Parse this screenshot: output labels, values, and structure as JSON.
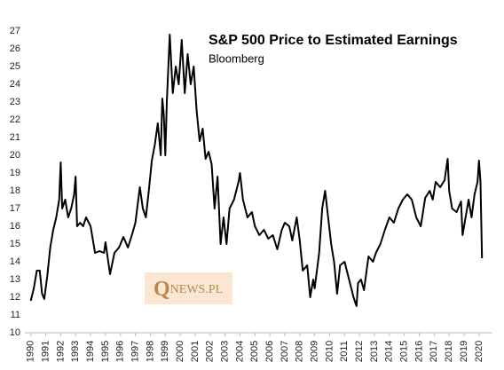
{
  "chart_data": {
    "type": "line",
    "title": "S&P 500 Price to Estimated Earnings",
    "subtitle": "Bloomberg",
    "watermark": {
      "initial": "Q",
      "rest": "NEWS.PL"
    },
    "color": "#000000",
    "x": [
      1990.0,
      1990.2,
      1990.4,
      1990.6,
      1990.75,
      1990.9,
      1991.1,
      1991.3,
      1991.5,
      1991.7,
      1991.9,
      1992.0,
      1992.1,
      1992.3,
      1992.5,
      1992.7,
      1992.9,
      1993.0,
      1993.1,
      1993.3,
      1993.5,
      1993.7,
      1994.0,
      1994.3,
      1994.6,
      1994.9,
      1995.0,
      1995.3,
      1995.6,
      1995.9,
      1996.2,
      1996.5,
      1996.8,
      1997.0,
      1997.3,
      1997.5,
      1997.7,
      1997.9,
      1998.1,
      1998.3,
      1998.5,
      1998.7,
      1998.8,
      1998.9,
      1999.0,
      1999.1,
      1999.3,
      1999.5,
      1999.7,
      1999.9,
      2000.1,
      2000.3,
      2000.5,
      2000.7,
      2000.9,
      2001.1,
      2001.3,
      2001.5,
      2001.7,
      2001.9,
      2002.1,
      2002.3,
      2002.5,
      2002.7,
      2002.9,
      2003.1,
      2003.3,
      2003.6,
      2003.9,
      2004.0,
      2004.2,
      2004.5,
      2004.8,
      2005.0,
      2005.3,
      2005.6,
      2005.9,
      2006.2,
      2006.5,
      2006.8,
      2007.0,
      2007.3,
      2007.5,
      2007.8,
      2008.0,
      2008.2,
      2008.5,
      2008.7,
      2008.9,
      2009.0,
      2009.3,
      2009.5,
      2009.7,
      2009.9,
      2010.1,
      2010.3,
      2010.5,
      2010.7,
      2011.0,
      2011.3,
      2011.6,
      2011.8,
      2011.9,
      2012.1,
      2012.3,
      2012.6,
      2012.9,
      2013.1,
      2013.4,
      2013.7,
      2014.0,
      2014.3,
      2014.6,
      2014.9,
      2015.2,
      2015.5,
      2015.8,
      2016.1,
      2016.4,
      2016.7,
      2016.9,
      2017.1,
      2017.4,
      2017.7,
      2017.9,
      2018.0,
      2018.2,
      2018.5,
      2018.8,
      2018.9,
      2019.1,
      2019.3,
      2019.5,
      2019.7,
      2019.9,
      2020.0,
      2020.1,
      2020.2
    ],
    "values": [
      11.8,
      12.5,
      13.5,
      13.5,
      12.2,
      11.9,
      13.2,
      14.8,
      15.8,
      16.5,
      17.5,
      19.6,
      17.0,
      17.5,
      16.5,
      17.0,
      17.8,
      18.8,
      16.0,
      16.2,
      16.0,
      16.5,
      16.0,
      14.5,
      14.6,
      14.5,
      15.1,
      13.3,
      14.5,
      14.8,
      15.4,
      14.8,
      15.6,
      16.2,
      18.2,
      17.0,
      16.5,
      18.0,
      19.7,
      20.6,
      21.8,
      20.0,
      23.2,
      22.3,
      20.0,
      23.0,
      26.8,
      23.5,
      25.0,
      24.0,
      26.5,
      23.5,
      25.7,
      24.0,
      25.0,
      22.5,
      20.8,
      21.5,
      19.8,
      20.2,
      19.5,
      17.0,
      18.8,
      15.0,
      16.5,
      15.0,
      17.0,
      17.5,
      18.5,
      19.0,
      17.5,
      16.5,
      16.8,
      16.0,
      15.5,
      15.8,
      15.3,
      15.5,
      14.7,
      15.8,
      16.2,
      16.0,
      15.2,
      16.5,
      15.2,
      13.5,
      13.8,
      12.0,
      13.0,
      12.5,
      14.5,
      17.0,
      18.0,
      16.5,
      15.0,
      14.0,
      12.2,
      13.8,
      14.0,
      13.0,
      12.0,
      11.5,
      12.8,
      13.0,
      12.4,
      14.3,
      14.0,
      14.5,
      15.0,
      15.8,
      16.5,
      16.2,
      17.0,
      17.5,
      17.8,
      17.5,
      16.5,
      16.0,
      17.6,
      18.0,
      17.5,
      18.5,
      18.2,
      18.6,
      19.8,
      18.0,
      17.0,
      16.8,
      17.4,
      15.5,
      16.5,
      17.5,
      16.5,
      17.8,
      18.5,
      19.7,
      18.5,
      14.2
    ],
    "xlim": [
      1989.6,
      2020.9
    ],
    "xticks": [
      1990,
      1991,
      1992,
      1993,
      1994,
      1995,
      1996,
      1997,
      1998,
      1999,
      2000,
      2001,
      2002,
      2003,
      2004,
      2005,
      2006,
      2007,
      2008,
      2009,
      2010,
      2011,
      2012,
      2013,
      2014,
      2015,
      2016,
      2017,
      2018,
      2019,
      2020
    ],
    "ylim": [
      10,
      27
    ],
    "yticks": [
      10,
      11,
      12,
      13,
      14,
      15,
      16,
      17,
      18,
      19,
      20,
      21,
      22,
      23,
      24,
      25,
      26,
      27
    ],
    "grid": false
  }
}
